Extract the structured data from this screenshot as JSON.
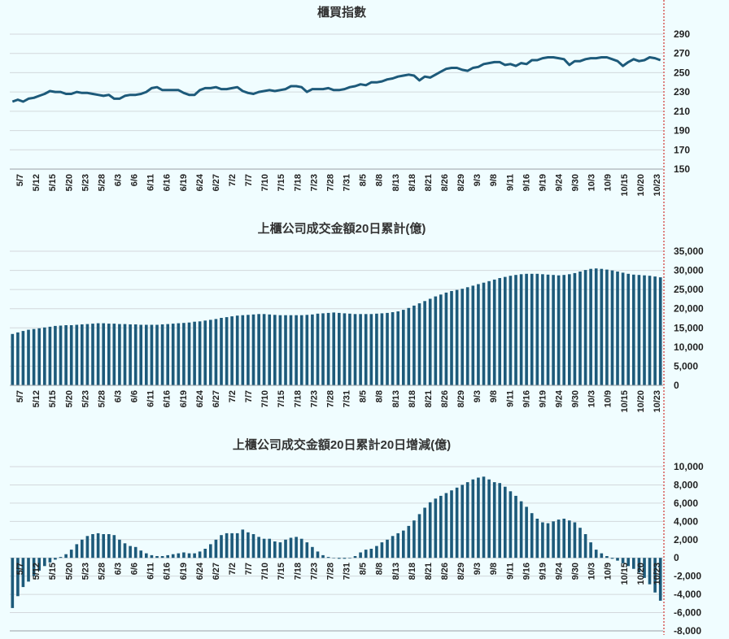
{
  "accent_color": "#1d5a7a",
  "marker_color": "#d0312d",
  "x_labels": [
    "5/7",
    "5/12",
    "5/15",
    "5/20",
    "5/23",
    "5/28",
    "6/3",
    "6/6",
    "6/11",
    "6/16",
    "6/19",
    "6/24",
    "6/27",
    "7/2",
    "7/7",
    "7/10",
    "7/15",
    "7/18",
    "7/23",
    "7/28",
    "7/31",
    "8/5",
    "8/8",
    "8/13",
    "8/18",
    "8/21",
    "8/26",
    "8/29",
    "9/3",
    "9/8",
    "9/11",
    "9/16",
    "9/19",
    "9/24",
    "9/30",
    "10/3",
    "10/9",
    "10/15",
    "10/20",
    "10/23"
  ],
  "chart_data": [
    {
      "type": "line",
      "title": "櫃買指數",
      "y_ticks": [
        "290",
        "270",
        "250",
        "230",
        "210",
        "190",
        "170",
        "150"
      ],
      "ylim": [
        150,
        300
      ],
      "grid": true,
      "values": [
        220,
        222,
        220,
        223,
        224,
        226,
        228,
        231,
        230,
        230,
        228,
        228,
        230,
        229,
        229,
        228,
        227,
        226,
        227,
        223,
        223,
        226,
        227,
        227,
        228,
        230,
        234,
        235,
        232,
        232,
        232,
        232,
        229,
        227,
        227,
        232,
        234,
        234,
        235,
        233,
        233,
        234,
        235,
        231,
        229,
        228,
        230,
        231,
        232,
        231,
        232,
        233,
        236,
        236,
        235,
        230,
        233,
        233,
        233,
        234,
        232,
        232,
        233,
        235,
        236,
        238,
        237,
        240,
        240,
        241,
        243,
        244,
        246,
        247,
        248,
        247,
        242,
        246,
        245,
        248,
        251,
        254,
        255,
        255,
        253,
        252,
        255,
        256,
        259,
        260,
        261,
        261,
        258,
        259,
        257,
        260,
        259,
        263,
        263,
        265,
        266,
        266,
        265,
        264,
        258,
        262,
        262,
        264,
        265,
        265,
        266,
        266,
        264,
        262,
        257,
        261,
        264,
        262,
        263,
        266,
        265,
        263
      ]
    },
    {
      "type": "bar",
      "title": "上櫃公司成交金額20日累計(億)",
      "y_ticks": [
        "35,000",
        "30,000",
        "25,000",
        "20,000",
        "15,000",
        "10,000",
        "5,000",
        "0"
      ],
      "ylim": [
        0,
        35000
      ],
      "grid": true,
      "values": [
        13400,
        13800,
        14200,
        14500,
        14700,
        14900,
        15100,
        15300,
        15500,
        15600,
        15700,
        15700,
        15800,
        15900,
        16000,
        16100,
        16200,
        16200,
        16100,
        16100,
        16000,
        16000,
        15900,
        15900,
        15800,
        15800,
        15800,
        15800,
        15900,
        16000,
        16100,
        16200,
        16300,
        16400,
        16600,
        16700,
        16900,
        17100,
        17300,
        17600,
        17800,
        18000,
        18200,
        18300,
        18400,
        18500,
        18600,
        18600,
        18500,
        18400,
        18300,
        18300,
        18300,
        18300,
        18300,
        18400,
        18500,
        18700,
        18800,
        18900,
        19000,
        18900,
        18800,
        18700,
        18600,
        18600,
        18600,
        18600,
        18700,
        18800,
        18900,
        19100,
        19300,
        19700,
        20200,
        20800,
        21400,
        22000,
        22600,
        23200,
        23700,
        24200,
        24600,
        24900,
        25200,
        25600,
        26000,
        26400,
        26800,
        27200,
        27600,
        28000,
        28300,
        28600,
        28800,
        29000,
        29100,
        29100,
        29100,
        29000,
        28900,
        28800,
        28700,
        28800,
        29000,
        29300,
        29700,
        30100,
        30400,
        30500,
        30400,
        30200,
        30000,
        29700,
        29400,
        29100,
        28900,
        28800,
        28700,
        28600,
        28400,
        28200
      ]
    },
    {
      "type": "bar",
      "title": "上櫃公司成交金額20日累計20日增減(億)",
      "y_ticks": [
        "10,000",
        "8,000",
        "6,000",
        "4,000",
        "2,000",
        "0",
        "-2,000",
        "-4,000",
        "-6,000",
        "-8,000"
      ],
      "ylim": [
        -8000,
        10000
      ],
      "grid": true,
      "values": [
        -5500,
        -4200,
        -3200,
        -2600,
        -2000,
        -1400,
        -900,
        -500,
        -200,
        100,
        400,
        900,
        1500,
        2000,
        2400,
        2600,
        2700,
        2600,
        2600,
        2500,
        2000,
        1600,
        1300,
        1200,
        800,
        500,
        300,
        200,
        200,
        300,
        400,
        500,
        600,
        500,
        500,
        700,
        1000,
        1500,
        2000,
        2500,
        2700,
        2700,
        2700,
        3100,
        2800,
        2600,
        2300,
        2100,
        2100,
        1800,
        1700,
        2000,
        2200,
        2300,
        2100,
        1700,
        1200,
        700,
        300,
        100,
        0,
        -100,
        -100,
        -50,
        200,
        600,
        900,
        1000,
        1300,
        1700,
        2000,
        2400,
        2700,
        3000,
        3500,
        4100,
        4800,
        5500,
        6100,
        6500,
        6800,
        7100,
        7400,
        7700,
        8000,
        8300,
        8600,
        8800,
        8900,
        8600,
        8300,
        8200,
        7800,
        7300,
        6800,
        6200,
        5600,
        4900,
        4300,
        3900,
        3800,
        4000,
        4200,
        4300,
        4100,
        3900,
        3300,
        2600,
        1700,
        900,
        500,
        200,
        -100,
        -300,
        -600,
        -900,
        -1200,
        -1600,
        -2200,
        -2900,
        -3800,
        -4700
      ]
    }
  ]
}
